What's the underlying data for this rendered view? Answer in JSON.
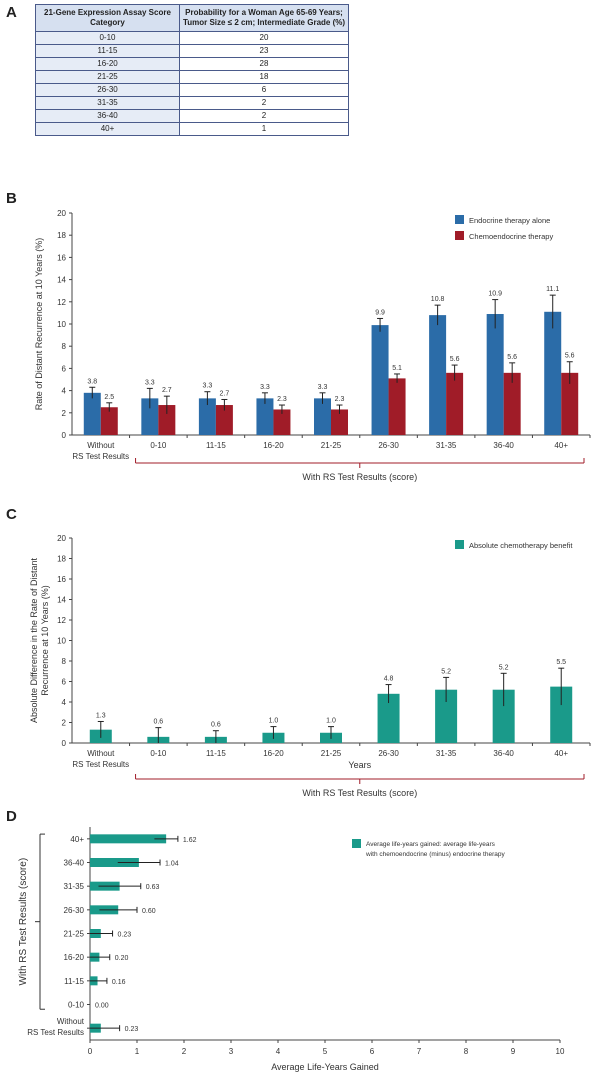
{
  "panels": {
    "a": "A",
    "b": "B",
    "c": "C",
    "d": "D"
  },
  "table_a": {
    "header_category": "21-Gene Expression Assay Score Category",
    "header_probability": "Probability for a Woman Age 65-69 Years; Tumor Size ≤ 2 cm; Intermediate Grade (%)",
    "rows": [
      {
        "category": "0-10",
        "probability": "20"
      },
      {
        "category": "11-15",
        "probability": "23"
      },
      {
        "category": "16-20",
        "probability": "28"
      },
      {
        "category": "21-25",
        "probability": "18"
      },
      {
        "category": "26-30",
        "probability": "6"
      },
      {
        "category": "31-35",
        "probability": "2"
      },
      {
        "category": "36-40",
        "probability": "2"
      },
      {
        "category": "40+",
        "probability": "1"
      }
    ]
  },
  "chart_data": [
    {
      "type": "bar",
      "panel": "B",
      "ylabel": "Rate of Distant Recurrence at 10 Years (%)",
      "xlabel": "",
      "ylim": [
        0,
        20
      ],
      "yticks": [
        0,
        2,
        4,
        6,
        8,
        10,
        12,
        14,
        16,
        18,
        20
      ],
      "categories": [
        "Without RS Test Results",
        "0-10",
        "11-15",
        "16-20",
        "21-25",
        "26-30",
        "31-35",
        "36-40",
        "40+"
      ],
      "bracket_label": "With RS Test Results (score)",
      "legend_position": "top-right",
      "series": [
        {
          "name": "Endocrine therapy alone",
          "color": "#2b6ca8",
          "values": [
            3.8,
            3.3,
            3.3,
            3.3,
            3.3,
            9.9,
            10.8,
            10.9,
            11.1
          ],
          "labels": [
            "3.8",
            "3.3",
            "3.3",
            "3.3",
            "3.3",
            "9.9",
            "10.8",
            "10.9",
            "11.1"
          ],
          "err": [
            0.5,
            0.9,
            0.6,
            0.5,
            0.5,
            0.6,
            0.9,
            1.3,
            1.5
          ]
        },
        {
          "name": "Chemoendocrine therapy",
          "color": "#a01c28",
          "values": [
            2.5,
            2.7,
            2.7,
            2.3,
            2.3,
            5.1,
            5.6,
            5.6,
            5.6
          ],
          "labels": [
            "2.5",
            "2.7",
            "2.7",
            "2.3",
            "2.3",
            "5.1",
            "5.6",
            "5.6",
            "5.6"
          ],
          "err": [
            0.4,
            0.8,
            0.5,
            0.4,
            0.4,
            0.4,
            0.7,
            0.9,
            1.0
          ]
        }
      ]
    },
    {
      "type": "bar",
      "panel": "C",
      "ylabel": "Absolute Difference in the Rate of Distant Recurrence at 10 Years (%)",
      "xlabel": "Years",
      "ylim": [
        0,
        20
      ],
      "yticks": [
        0,
        2,
        4,
        6,
        8,
        10,
        12,
        14,
        16,
        18,
        20
      ],
      "categories": [
        "Without RS Test Results",
        "0-10",
        "11-15",
        "16-20",
        "21-25",
        "26-30",
        "31-35",
        "36-40",
        "40+"
      ],
      "bracket_label": "With RS Test Results (score)",
      "legend_position": "top-right",
      "series": [
        {
          "name": "Absolute chemotherapy benefit",
          "color": "#1a9a8a",
          "values": [
            1.3,
            0.6,
            0.6,
            1.0,
            1.0,
            4.8,
            5.2,
            5.2,
            5.5
          ],
          "labels": [
            "1.3",
            "0.6",
            "0.6",
            "1.0",
            "1.0",
            "4.8",
            "5.2",
            "5.2",
            "5.5"
          ],
          "err": [
            0.8,
            0.9,
            0.6,
            0.6,
            0.6,
            0.9,
            1.2,
            1.6,
            1.8
          ]
        }
      ]
    },
    {
      "type": "bar",
      "orientation": "horizontal",
      "panel": "D",
      "xlabel": "Average Life-Years Gained",
      "ylabel": "With RS Test Results (score)",
      "xlim": [
        0,
        10
      ],
      "xticks": [
        0,
        1,
        2,
        3,
        4,
        5,
        6,
        7,
        8,
        9,
        10
      ],
      "categories": [
        "40+",
        "36-40",
        "31-35",
        "26-30",
        "21-25",
        "16-20",
        "11-15",
        "0-10",
        "Without RS Test Results"
      ],
      "legend_position": "top-right",
      "series": [
        {
          "name": "Average life-years gained: average life-years with chemoendocrine (minus) endocrine therapy",
          "color": "#1a9a8a",
          "values": [
            1.62,
            1.04,
            0.63,
            0.6,
            0.23,
            0.2,
            0.16,
            0.0,
            0.23
          ],
          "labels": [
            "1.62",
            "1.04",
            "0.63",
            "0.60",
            "0.23",
            "0.20",
            "0.16",
            "0.00",
            "0.23"
          ],
          "err": [
            0.25,
            0.45,
            0.45,
            0.4,
            0.25,
            0.22,
            0.2,
            0.0,
            0.4
          ]
        }
      ]
    }
  ]
}
